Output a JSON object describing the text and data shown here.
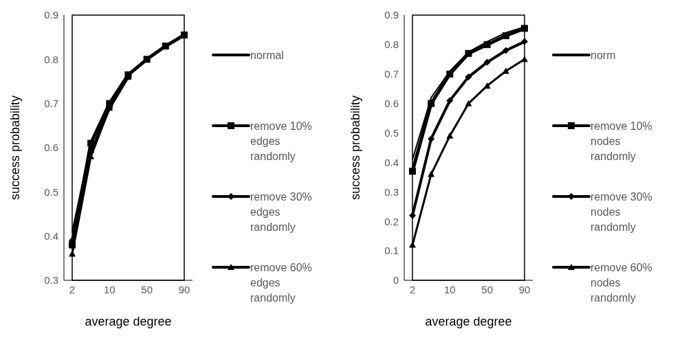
{
  "chart_data": [
    {
      "type": "line",
      "xlabel": "average degree",
      "ylabel": "success probability",
      "categories": [
        "2",
        null,
        "10",
        null,
        "50",
        null,
        "90"
      ],
      "ylim": [
        0.3,
        0.9
      ],
      "yticks": [
        {
          "value": 0.3,
          "label": "0.3"
        },
        {
          "value": 0.4,
          "label": "0.4"
        },
        {
          "value": 0.5,
          "label": "0.5"
        },
        {
          "value": 0.6,
          "label": "0.6"
        },
        {
          "value": 0.7,
          "label": "0.7"
        },
        {
          "value": 0.8,
          "label": "0.8"
        },
        {
          "value": 0.9,
          "label": "0.9"
        }
      ],
      "legend": "right",
      "series": [
        {
          "name": "normal",
          "color": "#000000",
          "values": [
            0.41,
            0.61,
            0.7,
            0.765,
            null,
            null,
            null
          ]
        },
        {
          "name": "remove 10% edges randomly",
          "color": "#000000",
          "marker": "square",
          "values": [
            0.38,
            0.61,
            0.7,
            0.765,
            0.8,
            0.83,
            0.855
          ]
        },
        {
          "name": "remove 30% edges randomly",
          "color": "#000000",
          "marker": "diamond",
          "values": [
            0.39,
            0.59,
            0.69,
            0.76,
            null,
            null,
            null
          ]
        },
        {
          "name": "remove 60% edges randomly",
          "color": "#000000",
          "marker": "triangle",
          "values": [
            0.36,
            0.58,
            0.69,
            0.76,
            null,
            null,
            null
          ]
        }
      ]
    },
    {
      "type": "line",
      "xlabel": "average degree",
      "ylabel": "success probability",
      "categories": [
        "2",
        null,
        "10",
        null,
        "50",
        null,
        "90"
      ],
      "ylim": [
        0,
        0.9
      ],
      "yticks": [
        0,
        {
          "value": 0.1,
          "label": "0.1"
        },
        {
          "value": 0.2,
          "label": "0.2"
        },
        {
          "value": 0.3,
          "label": "0.3"
        },
        {
          "value": 0.4,
          "label": "0.4"
        },
        {
          "value": 0.5,
          "label": "0.5"
        },
        {
          "value": 0.6,
          "label": "0.6"
        },
        {
          "value": 0.7,
          "label": "0.7"
        },
        {
          "value": 0.8,
          "label": "0.8"
        },
        {
          "value": 0.9,
          "label": "0.9"
        }
      ],
      "legend": "right",
      "series": [
        {
          "name": "norm",
          "color": "#000000",
          "values": [
            0.41,
            0.62,
            0.71,
            0.775,
            0.81,
            0.84,
            0.86
          ]
        },
        {
          "name": "remove 10% nodes randomly",
          "color": "#000000",
          "marker": "square",
          "values": [
            0.37,
            0.6,
            0.7,
            0.77,
            0.8,
            0.83,
            0.855
          ]
        },
        {
          "name": "remove 30% nodes randomly",
          "color": "#000000",
          "marker": "diamond",
          "values": [
            0.22,
            0.48,
            0.61,
            0.69,
            0.74,
            0.78,
            0.81
          ]
        },
        {
          "name": "remove 60% nodes randomly",
          "color": "#000000",
          "marker": "triangle",
          "values": [
            0.12,
            0.36,
            0.49,
            0.6,
            0.66,
            0.71,
            0.75
          ]
        }
      ]
    }
  ]
}
